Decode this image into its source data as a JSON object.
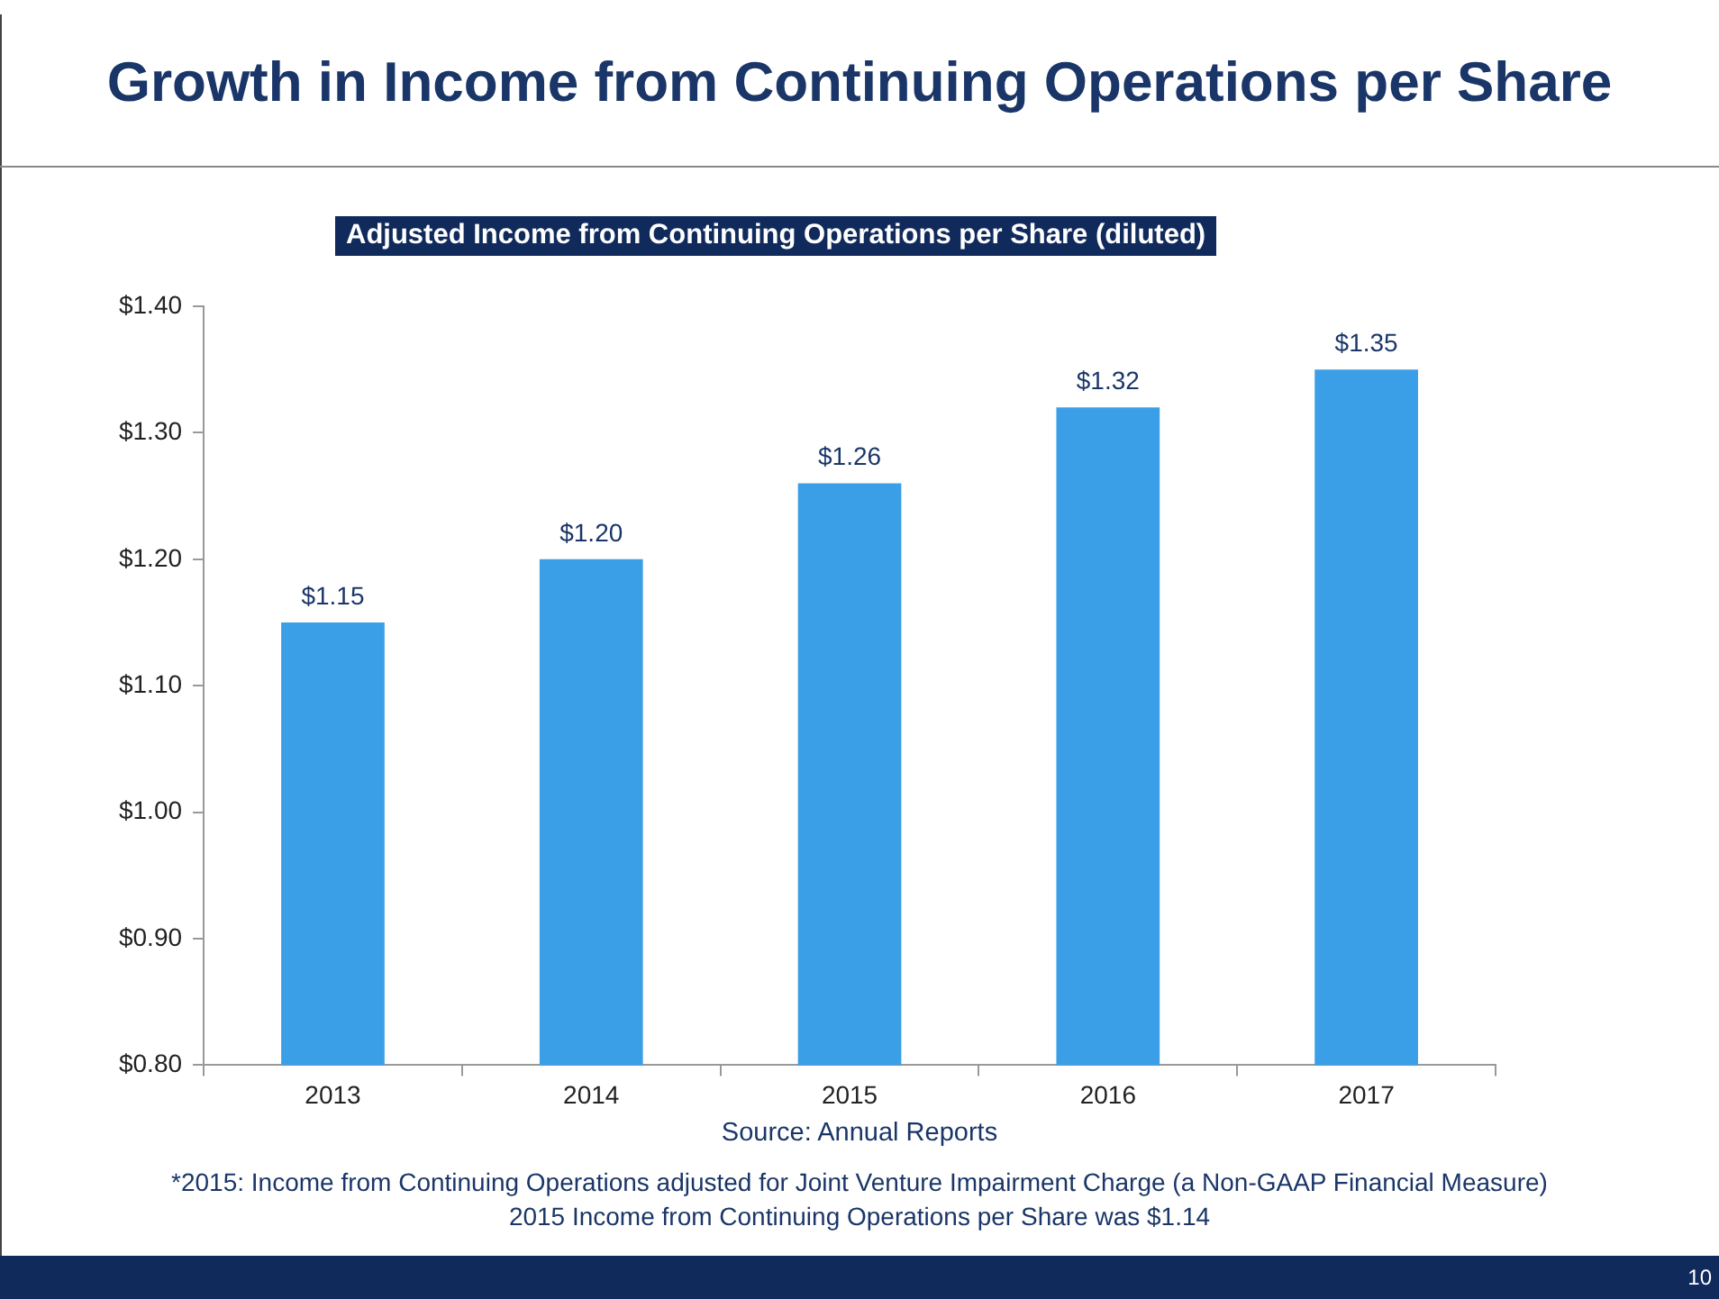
{
  "chart_data": {
    "type": "bar",
    "title": "Growth in Income from Continuing Operations per Share",
    "subtitle": "Adjusted Income from Continuing Operations per Share (diluted)",
    "categories": [
      "2013",
      "2014",
      "2015",
      "2016",
      "2017"
    ],
    "values": [
      1.15,
      1.2,
      1.26,
      1.32,
      1.35
    ],
    "value_labels": [
      "$1.15",
      "$1.20",
      "$1.26",
      "$1.32",
      "$1.35"
    ],
    "color": "#3a9fe6",
    "ylim": [
      0.8,
      1.4
    ],
    "yticks": [
      {
        "value": 0.8,
        "label": "$0.80"
      },
      {
        "value": 0.9,
        "label": "$0.90"
      },
      {
        "value": 1.0,
        "label": "$1.00"
      },
      {
        "value": 1.1,
        "label": "$1.10"
      },
      {
        "value": 1.2,
        "label": "$1.20"
      },
      {
        "value": 1.3,
        "label": "$1.30"
      },
      {
        "value": 1.4,
        "label": "$1.40"
      }
    ],
    "grid": false,
    "legend": false,
    "annotations": [
      "Source: Annual Reports",
      "*2015: Income from Continuing Operations adjusted for Joint Venture Impairment Charge (a Non-GAAP Financial Measure)",
      "2015 Income from Continuing Operations per Share was $1.14",
      "10"
    ]
  }
}
